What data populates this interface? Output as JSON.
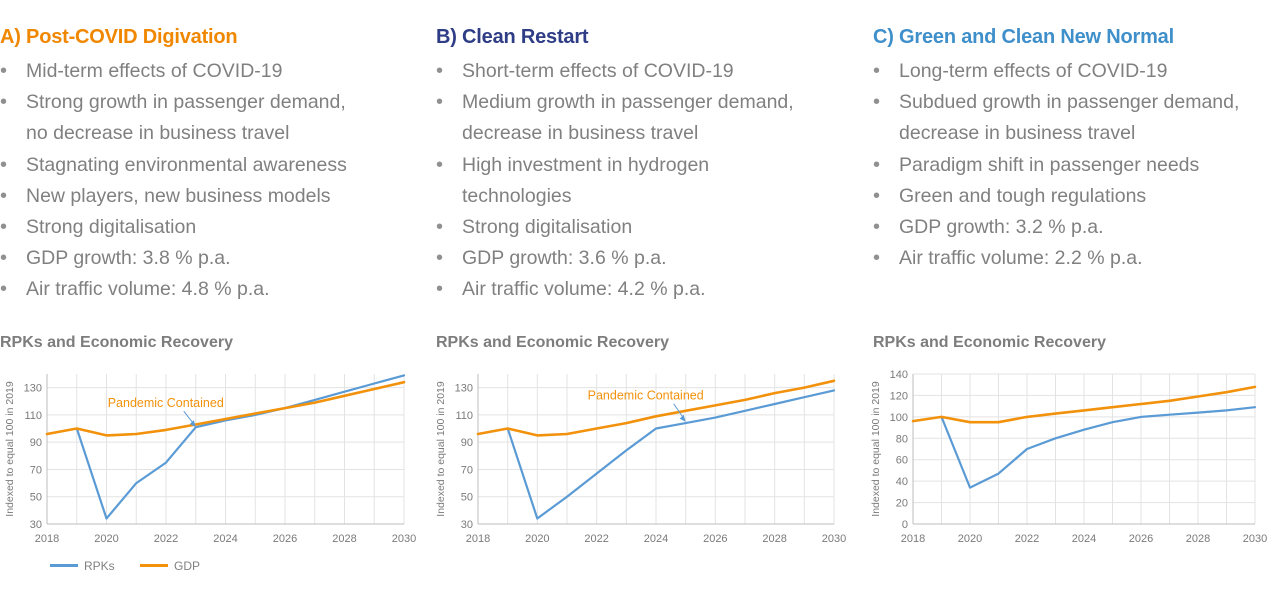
{
  "colors": {
    "rpk": "#5b9bd5",
    "gdp": "#f2920c",
    "titleA": "#f08700",
    "titleB": "#2e3d85",
    "titleC": "#3f8fca"
  },
  "panels": [
    {
      "title": "A) Post-COVID Digivation",
      "bullets": [
        "Mid-term effects of COVID-19",
        "Strong growth in passenger demand,",
        "no decrease in business travel",
        "Stagnating environmental awareness",
        "New players, new business models",
        "Strong digitalisation",
        "GDP growth: 3.8 % p.a.",
        "Air traffic volume: 4.8 % p.a."
      ],
      "chart_title": "RPKs and Economic Recovery"
    },
    {
      "title": "B) Clean Restart",
      "bullets": [
        "Short-term effects of COVID-19",
        "Medium growth in passenger demand,",
        "decrease in business travel",
        "High investment in hydrogen",
        "technologies",
        "Strong digitalisation",
        "GDP growth: 3.6 % p.a.",
        "Air traffic volume: 4.2 % p.a."
      ],
      "chart_title": "RPKs and Economic Recovery"
    },
    {
      "title": "C) Green and Clean New Normal",
      "bullets": [
        "Long-term effects of COVID-19",
        "Subdued growth in passenger demand,",
        "decrease in business travel",
        "Paradigm shift in passenger needs",
        "Green and tough regulations",
        "GDP growth: 3.2 % p.a.",
        "Air traffic volume: 2.2 % p.a."
      ],
      "chart_title": "RPKs and Economic Recovery"
    }
  ],
  "legend": {
    "rpk": "RPKs",
    "gdp": "GDP"
  },
  "chart_data": [
    {
      "type": "line",
      "title": "RPKs and Economic Recovery",
      "ylabel": "Indexed to equal 100 in 2019",
      "xlim": [
        2018,
        2030
      ],
      "ylim": [
        30,
        140
      ],
      "xticks": [
        2018,
        2020,
        2022,
        2024,
        2026,
        2028,
        2030
      ],
      "yticks": [
        30,
        50,
        70,
        90,
        110,
        130
      ],
      "annotation": {
        "text": "Pandemic Contained",
        "x": 2023,
        "y": 101
      },
      "series": [
        {
          "name": "RPKs",
          "x": [
            2019,
            2020,
            2021,
            2022,
            2023,
            2024,
            2025,
            2026,
            2027,
            2028,
            2029,
            2030
          ],
          "values": [
            100,
            34,
            60,
            75,
            101,
            106,
            110,
            115,
            121,
            127,
            133,
            139
          ]
        },
        {
          "name": "GDP",
          "x": [
            2018,
            2019,
            2020,
            2021,
            2022,
            2023,
            2024,
            2025,
            2026,
            2027,
            2028,
            2029,
            2030
          ],
          "values": [
            96,
            100,
            95,
            96,
            99,
            103,
            107,
            111,
            115,
            119,
            124,
            129,
            134
          ]
        }
      ]
    },
    {
      "type": "line",
      "title": "RPKs and Economic Recovery",
      "ylabel": "Indexed to equal 100 in 2019",
      "xlim": [
        2018,
        2030
      ],
      "ylim": [
        30,
        140
      ],
      "xticks": [
        2018,
        2020,
        2022,
        2024,
        2026,
        2028,
        2030
      ],
      "yticks": [
        30,
        50,
        70,
        90,
        110,
        130
      ],
      "annotation": {
        "text": "Pandemic Contained",
        "x": 2025,
        "y": 105
      },
      "series": [
        {
          "name": "RPKs",
          "x": [
            2019,
            2020,
            2021,
            2022,
            2023,
            2024,
            2025,
            2026,
            2027,
            2028,
            2029,
            2030
          ],
          "values": [
            100,
            34,
            50,
            67,
            84,
            100,
            104,
            108,
            113,
            118,
            123,
            128
          ]
        },
        {
          "name": "GDP",
          "x": [
            2018,
            2019,
            2020,
            2021,
            2022,
            2023,
            2024,
            2025,
            2026,
            2027,
            2028,
            2029,
            2030
          ],
          "values": [
            96,
            100,
            95,
            96,
            100,
            104,
            109,
            113,
            117,
            121,
            126,
            130,
            135
          ]
        }
      ]
    },
    {
      "type": "line",
      "title": "RPKs and Economic Recovery",
      "ylabel": "Indexed to equal 100 in 2019",
      "xlim": [
        2018,
        2030
      ],
      "ylim": [
        0,
        140
      ],
      "xticks": [
        2018,
        2020,
        2022,
        2024,
        2026,
        2028,
        2030
      ],
      "yticks": [
        0,
        20,
        40,
        60,
        80,
        100,
        120,
        140
      ],
      "series": [
        {
          "name": "RPKs",
          "x": [
            2019,
            2020,
            2021,
            2022,
            2023,
            2024,
            2025,
            2026,
            2027,
            2028,
            2029,
            2030
          ],
          "values": [
            100,
            34,
            47,
            70,
            80,
            88,
            95,
            100,
            102,
            104,
            106,
            109
          ]
        },
        {
          "name": "GDP",
          "x": [
            2018,
            2019,
            2020,
            2021,
            2022,
            2023,
            2024,
            2025,
            2026,
            2027,
            2028,
            2029,
            2030
          ],
          "values": [
            96,
            100,
            95,
            95,
            100,
            103,
            106,
            109,
            112,
            115,
            119,
            123,
            128
          ]
        }
      ]
    }
  ]
}
